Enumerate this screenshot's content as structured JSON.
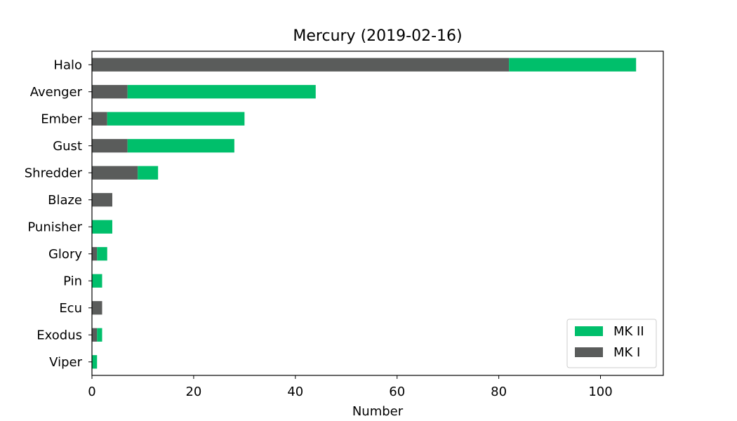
{
  "chart_data": {
    "type": "bar",
    "orientation": "horizontal",
    "stacked": true,
    "title": "Mercury (2019-02-16)",
    "xlabel": "Number",
    "ylabel": "",
    "xlim": [
      0,
      112.35
    ],
    "xticks": [
      0,
      20,
      40,
      60,
      80,
      100
    ],
    "grid": false,
    "legend_position": "lower-right",
    "categories": [
      "Halo",
      "Avenger",
      "Ember",
      "Gust",
      "Shredder",
      "Blaze",
      "Punisher",
      "Glory",
      "Pin",
      "Ecu",
      "Exodus",
      "Viper"
    ],
    "series": [
      {
        "name": "MK I",
        "color": "#5a5c5b",
        "values": [
          82,
          7,
          3,
          7,
          9,
          4,
          0,
          1,
          0,
          2,
          1,
          0
        ]
      },
      {
        "name": "MK II",
        "color": "#00bf6b",
        "values": [
          25,
          37,
          27,
          21,
          4,
          0,
          4,
          2,
          2,
          0,
          1,
          1
        ]
      }
    ],
    "legend_order": [
      "MK II",
      "MK I"
    ]
  }
}
